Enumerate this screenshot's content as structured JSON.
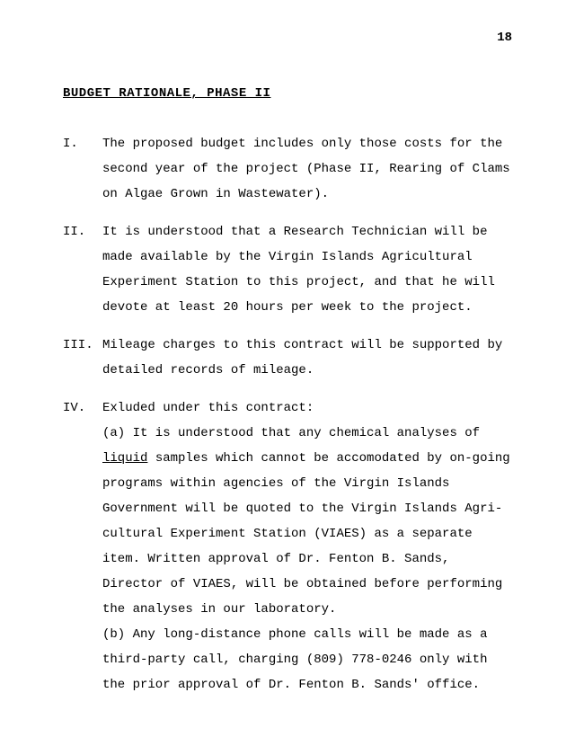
{
  "page_number": "18",
  "title": "BUDGET RATIONALE, PHASE II",
  "items": {
    "i": {
      "roman": "I.",
      "text": "The proposed budget includes only those costs for the second year of the project (Phase II, Rearing of Clams on Algae Grown in Wastewater)."
    },
    "ii": {
      "roman": "II.",
      "text": "It is understood that a Research Technician will be made available by the Virgin Islands Agricultural Experiment Station to this project, and that he will devote at least 20 hours per week to the pro­ject."
    },
    "iii": {
      "roman": "III.",
      "text": "Mileage charges to this contract will be supported by detailed records of mileage."
    },
    "iv": {
      "roman": "IV.",
      "intro": "Exluded under this contract:",
      "a_pre": "(a) It is understood that any chemical analyses of ",
      "a_underlined": "liquid",
      "a_post": " samples which cannot be accomodated by on-going programs within agencies of the Virgin Islands Government will be quoted to the Virgin Islands Agri­cultural Experiment Station (VIAES) as a separate item.  Written approval of Dr. Fenton B. Sands, Director of VIAES, will be obtained before performing the analyses in our laboratory.",
      "b": "(b) Any long-distance phone calls will be made as a third-party call, charging (809) 778-0246 only with the prior approval of Dr. Fenton B. Sands' office."
    }
  }
}
